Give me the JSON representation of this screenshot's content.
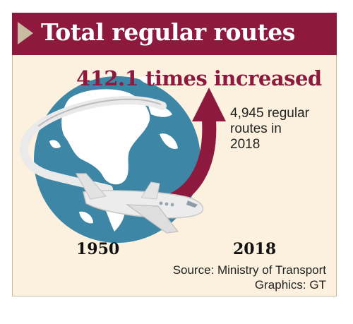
{
  "banner": {
    "title": "Total regular routes",
    "color": "#8d1a3e"
  },
  "headline": "412.1 times increased",
  "description": {
    "line1": "4,945 regular",
    "line2": "routes in",
    "line3": "2018"
  },
  "years": {
    "start": "1950",
    "end": "2018"
  },
  "credits": {
    "source": "Source: Ministry of Transport",
    "graphics": "Graphics: GT"
  },
  "illustration": {
    "globe_color": "#3d86a6",
    "land_color": "#ffffff",
    "arrow_color": "#8d1a3e",
    "plane_color": "#ececec",
    "icons": [
      "globe-icon",
      "airplane-icon",
      "upward-arrow-icon"
    ]
  }
}
